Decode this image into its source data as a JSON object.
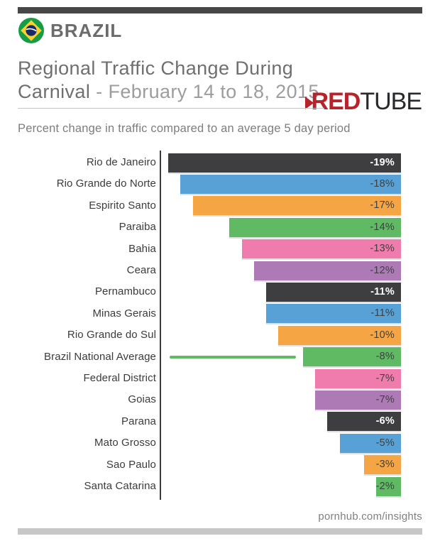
{
  "brand": {
    "country_label": "BRAZIL",
    "flag_icon": "brazil-flag-icon",
    "flag_colors": {
      "green": "#169b46",
      "yellow": "#f8d12e",
      "blue": "#1b2a6b",
      "band": "#ffffff"
    },
    "top_bar_color": "#474747"
  },
  "title": {
    "line1": "Regional Traffic Change During",
    "line2_dark": "Carnival",
    "line2_light": "- February 14 to 18, 2015"
  },
  "logo": {
    "red_part": "RED",
    "tube_part": "TUBE",
    "red_color": "#b6232b",
    "tube_color": "#27292b"
  },
  "subtitle": "Percent change in traffic compared to an average 5 day period",
  "footer": {
    "url": "pornhub.com/insights",
    "bottom_bar_color": "#c7c7c7"
  },
  "chart_data": {
    "type": "bar",
    "orientation": "horizontal",
    "title": "Regional Traffic Change During Carnival - February 14 to 18, 2015",
    "subtitle": "Percent change in traffic compared to an average 5 day period",
    "unit": "%",
    "xlim": [
      -19,
      0
    ],
    "grid": false,
    "legend": false,
    "value_labels_inside_bars": true,
    "bars_right_aligned": true,
    "palette": {
      "dark": "#3e3e40",
      "blue": "#57a1d6",
      "orange": "#f6a545",
      "green": "#5fba63",
      "pink": "#f07cad",
      "purple": "#ae7ab5"
    },
    "rows": [
      {
        "label": "Rio de Janeiro",
        "value": -19,
        "display": "-19%",
        "color": "#3e3e40",
        "value_color": "#ffffff",
        "value_bold": true
      },
      {
        "label": "Rio Grande do Norte",
        "value": -18,
        "display": "-18%",
        "color": "#57a1d6",
        "value_color": "#3e4042",
        "value_bold": false
      },
      {
        "label": "Espirito Santo",
        "value": -17,
        "display": "-17%",
        "color": "#f6a545",
        "value_color": "#3e4042",
        "value_bold": false
      },
      {
        "label": "Paraiba",
        "value": -14,
        "display": "-14%",
        "color": "#5fba63",
        "value_color": "#3e4042",
        "value_bold": false
      },
      {
        "label": "Bahia",
        "value": -13,
        "display": "-13%",
        "color": "#f07cad",
        "value_color": "#3e4042",
        "value_bold": false
      },
      {
        "label": "Ceara",
        "value": -12,
        "display": "-12%",
        "color": "#ae7ab5",
        "value_color": "#3e4042",
        "value_bold": false
      },
      {
        "label": "Pernambuco",
        "value": -11,
        "display": "-11%",
        "color": "#3e3e40",
        "value_color": "#ffffff",
        "value_bold": true
      },
      {
        "label": "Minas Gerais",
        "value": -11,
        "display": "-11%",
        "color": "#57a1d6",
        "value_color": "#3e4042",
        "value_bold": false
      },
      {
        "label": "Rio Grande do Sul",
        "value": -10,
        "display": "-10%",
        "color": "#f6a545",
        "value_color": "#3e4042",
        "value_bold": false
      },
      {
        "label": "Brazil National Average",
        "value": -8,
        "display": "-8%",
        "color": "#5fba63",
        "value_color": "#3e4042",
        "value_bold": false,
        "average_line": true,
        "average_line_color": "#5fba63"
      },
      {
        "label": "Federal District",
        "value": -7,
        "display": "-7%",
        "color": "#f07cad",
        "value_color": "#3e4042",
        "value_bold": false
      },
      {
        "label": "Goias",
        "value": -7,
        "display": "-7%",
        "color": "#ae7ab5",
        "value_color": "#3e4042",
        "value_bold": false
      },
      {
        "label": "Parana",
        "value": -6,
        "display": "-6%",
        "color": "#3e3e40",
        "value_color": "#ffffff",
        "value_bold": true
      },
      {
        "label": "Mato Grosso",
        "value": -5,
        "display": "-5%",
        "color": "#57a1d6",
        "value_color": "#3e4042",
        "value_bold": false
      },
      {
        "label": "Sao Paulo",
        "value": -3,
        "display": "-3%",
        "color": "#f6a545",
        "value_color": "#3e4042",
        "value_bold": false
      },
      {
        "label": "Santa Catarina",
        "value": -2,
        "display": "-2%",
        "color": "#5fba63",
        "value_color": "#3e4042",
        "value_bold": false
      }
    ]
  }
}
